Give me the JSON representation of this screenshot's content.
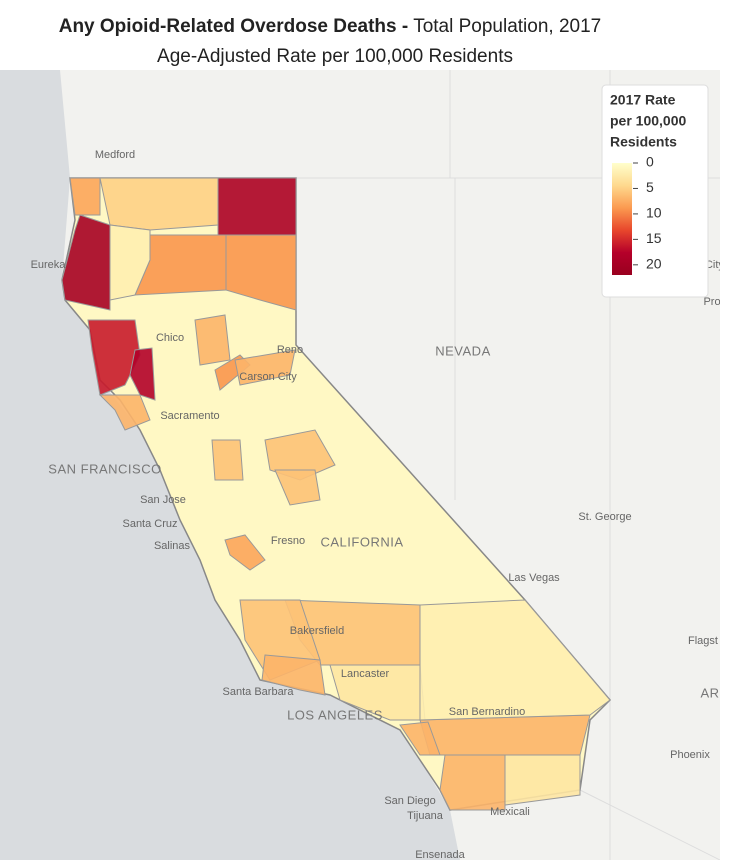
{
  "header": {
    "title_bold": "Any Opioid-Related Overdose Deaths -",
    "title_rest": "Total Population, 2017",
    "subtitle": "Age-Adjusted Rate per 100,000 Residents"
  },
  "map": {
    "region_values": [
      8,
      20,
      5,
      19,
      9,
      9,
      2,
      16,
      18,
      7,
      7,
      9,
      7,
      6,
      6,
      6,
      8,
      6,
      6,
      7,
      7,
      7,
      3,
      7,
      3,
      2
    ],
    "clim": [
      0,
      22
    ],
    "colorscale": [
      "#ffffcc",
      "#fed98e",
      "#fb9a50",
      "#e8472c",
      "#b5002a",
      "#99001f"
    ],
    "places": [
      "Medford",
      "Eureka",
      "NEVADA",
      "SAN FRANCISCO",
      "San Jose",
      "Santa Cruz",
      "Salinas",
      "Fresno",
      "CALIFORNIA",
      "Las Vegas",
      "St. George",
      "Bakersfield",
      "Lancaster",
      "Santa Barbara",
      "LOS ANGELES",
      "San Bernardino",
      "San Diego",
      "Tijuana",
      "Mexicali",
      "Ensenada",
      "Phoenix",
      "Flagst",
      "AR",
      "Pro",
      "Salt Lake City",
      "Chico",
      "Reno",
      "Carson City",
      "Sacramento"
    ]
  },
  "legend": {
    "title": [
      "2017 Rate",
      "per 100,000",
      "Residents"
    ],
    "ticks": [
      0,
      5,
      10,
      15,
      20
    ]
  }
}
